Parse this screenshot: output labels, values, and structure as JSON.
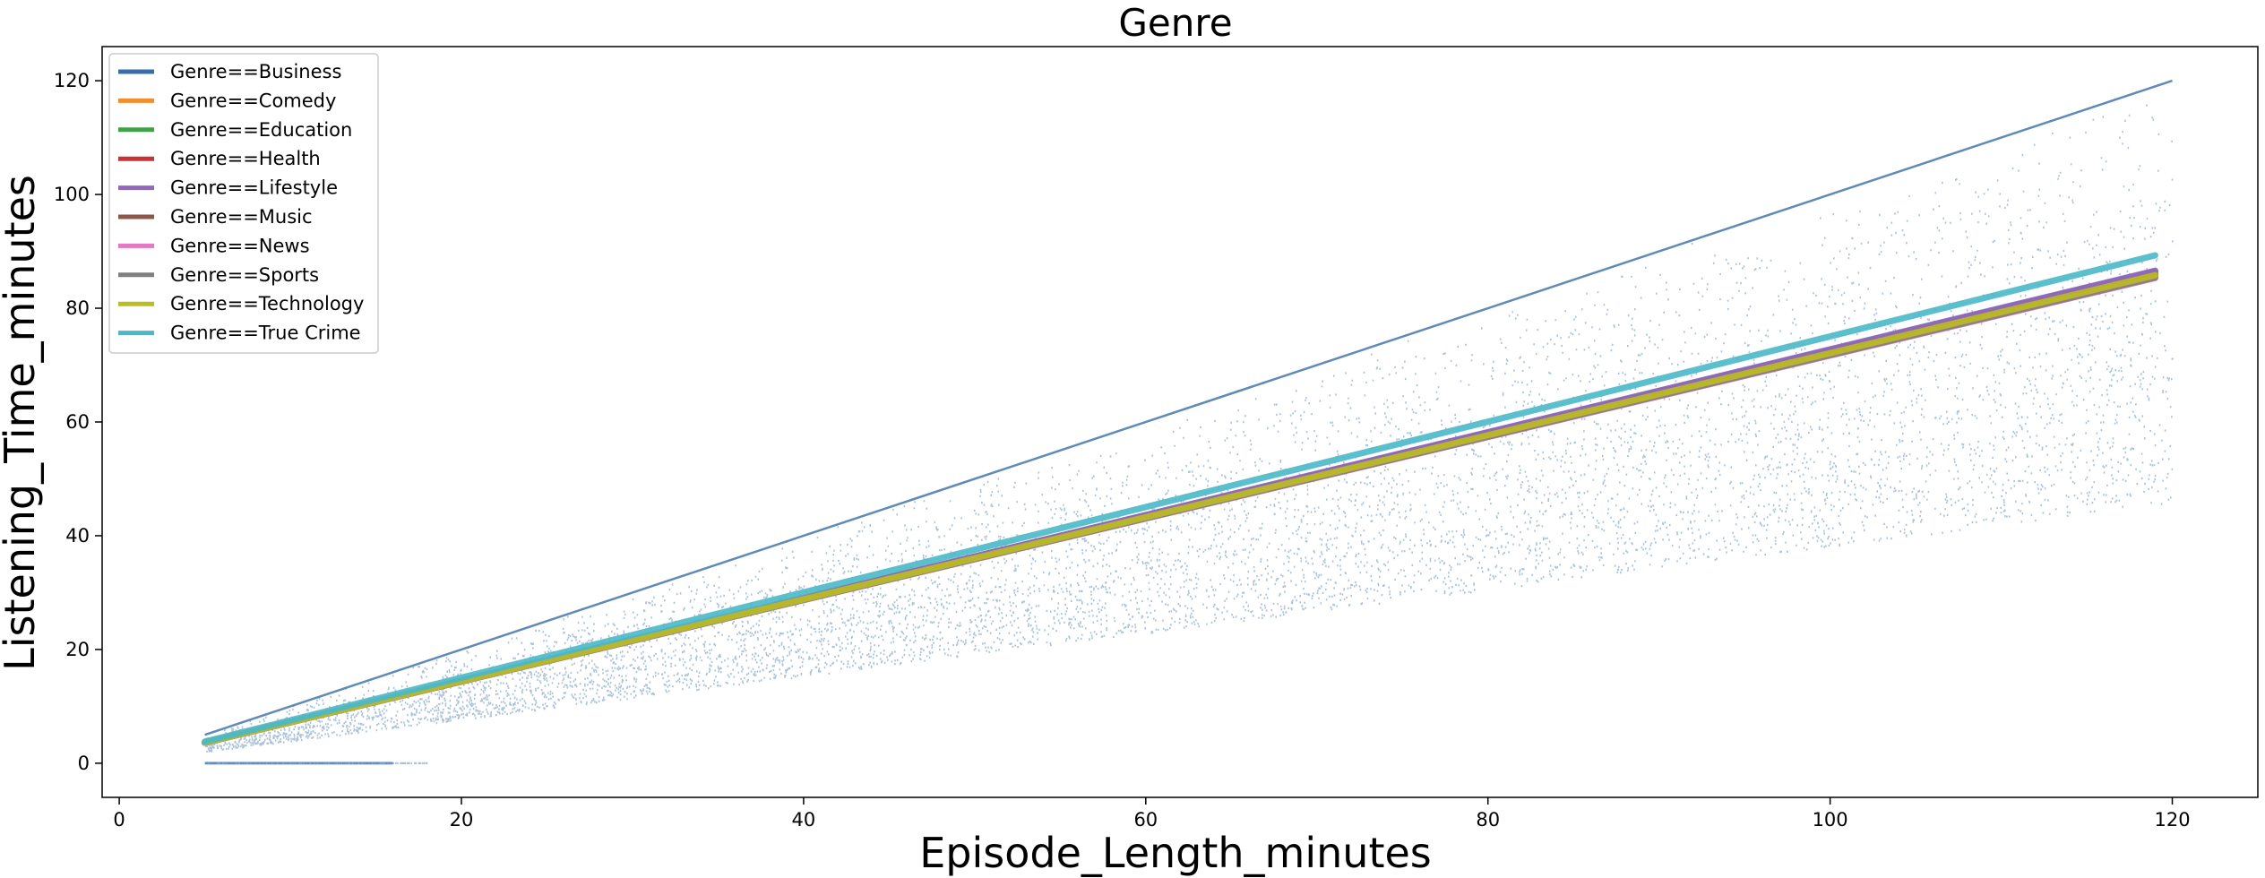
{
  "chart_data": {
    "type": "scatter",
    "title": "Genre",
    "xlabel": "Episode_Length_minutes",
    "ylabel": "Listening_Time_minutes",
    "xlim": [
      -1,
      125
    ],
    "ylim": [
      -6,
      126
    ],
    "x_ticks": [
      0,
      20,
      40,
      60,
      80,
      100,
      120
    ],
    "y_ticks": [
      0,
      20,
      40,
      60,
      80,
      100,
      120
    ],
    "grid": false,
    "legend_position": "top-left",
    "scatter": {
      "color": "#4477aa",
      "x_range": [
        5,
        120
      ],
      "y_min": 0,
      "y_max_equals_x": true,
      "description_points": 24000
    },
    "series": [
      {
        "name": "Genre==Business",
        "color": "#3a6ea8",
        "x": [
          5,
          119
        ],
        "y": [
          3.6,
          86.5
        ]
      },
      {
        "name": "Genre==Comedy",
        "color": "#f28e2b",
        "x": [
          5,
          119
        ],
        "y": [
          3.6,
          86.0
        ]
      },
      {
        "name": "Genre==Education",
        "color": "#44a048",
        "x": [
          5,
          119
        ],
        "y": [
          3.6,
          86.2
        ]
      },
      {
        "name": "Genre==Health",
        "color": "#c83232",
        "x": [
          5,
          119
        ],
        "y": [
          3.6,
          85.9
        ]
      },
      {
        "name": "Genre==Lifestyle",
        "color": "#9467bd",
        "x": [
          5,
          119
        ],
        "y": [
          3.6,
          86.6
        ]
      },
      {
        "name": "Genre==Music",
        "color": "#8c564b",
        "x": [
          5,
          119
        ],
        "y": [
          3.6,
          85.6
        ]
      },
      {
        "name": "Genre==News",
        "color": "#e377c2",
        "x": [
          5,
          119
        ],
        "y": [
          3.6,
          85.3
        ]
      },
      {
        "name": "Genre==Sports",
        "color": "#7f7f7f",
        "x": [
          5,
          119
        ],
        "y": [
          3.6,
          85.4
        ]
      },
      {
        "name": "Genre==Technology",
        "color": "#bcbd22",
        "x": [
          5,
          119
        ],
        "y": [
          3.6,
          85.8
        ]
      },
      {
        "name": "Genre==True Crime",
        "color": "#4ab8c8",
        "x": [
          5,
          119
        ],
        "y": [
          3.8,
          89.3
        ]
      }
    ]
  }
}
